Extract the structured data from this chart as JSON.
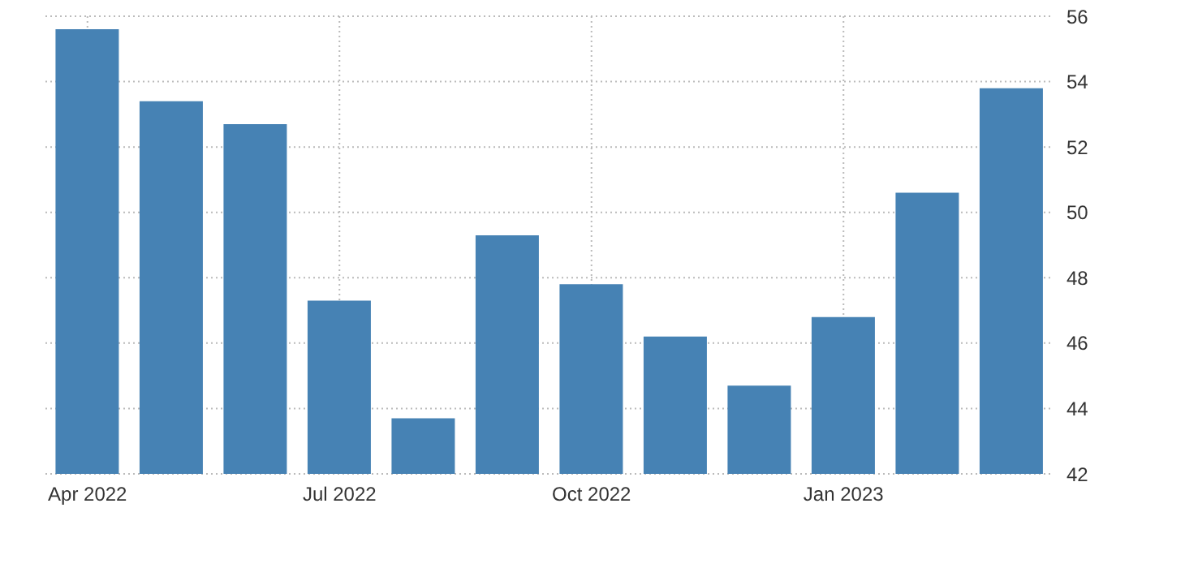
{
  "chart_data": {
    "type": "bar",
    "categories": [
      "Apr 2022",
      null,
      null,
      "Jul 2022",
      null,
      null,
      "Oct 2022",
      null,
      null,
      "Jan 2023",
      null,
      null
    ],
    "values": [
      55.6,
      53.4,
      52.7,
      47.3,
      43.7,
      49.3,
      47.8,
      46.2,
      44.7,
      46.8,
      50.6,
      53.8
    ],
    "color": "#4682b4",
    "ylim": [
      42,
      56
    ],
    "yticks": [
      42,
      44,
      46,
      48,
      50,
      52,
      54,
      56
    ],
    "grid": true
  }
}
